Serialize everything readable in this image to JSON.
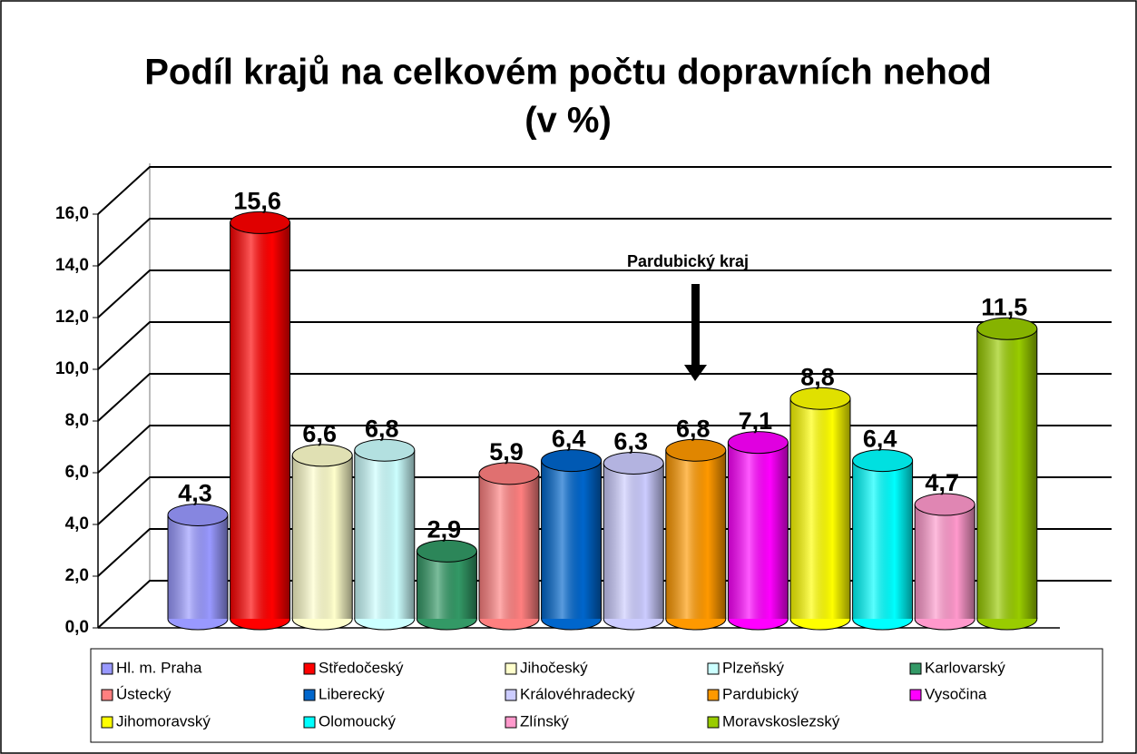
{
  "chart_data": {
    "type": "bar3d",
    "title": [
      "Podíl krajů na celkovém počtu dopravních nehod",
      "(v %)"
    ],
    "annotation": "Pardubický kraj",
    "categories": [
      "Hl. m. Praha",
      "Středočeský",
      "Jihočeský",
      "Plzeňský",
      "Karlovarský",
      "Ústecký",
      "Liberecký",
      "Královéhradecký",
      "Pardubický",
      "Vysočina",
      "Jihomoravský",
      "Olomoucký",
      "Zlínský",
      "Moravskoslezský"
    ],
    "values": [
      4.3,
      15.6,
      6.6,
      6.8,
      2.9,
      5.9,
      6.4,
      6.3,
      6.8,
      7.1,
      8.8,
      6.4,
      4.7,
      11.5
    ],
    "value_labels": [
      "4,3",
      "15,6",
      "6,6",
      "6,8",
      "2,9",
      "5,9",
      "6,4",
      "6,3",
      "6,8",
      "7,1",
      "8,8",
      "6,4",
      "4,7",
      "11,5"
    ],
    "colors": [
      "#9999ff",
      "#ff0000",
      "#ffffcc",
      "#ccffff",
      "#339966",
      "#ff8080",
      "#0066cc",
      "#ccccff",
      "#ff9900",
      "#ff00ff",
      "#ffff00",
      "#00ffff",
      "#ff99cc",
      "#99cc00"
    ],
    "ylim": [
      0,
      16
    ],
    "yticks": [
      {
        "value": 0,
        "label": "0,0"
      },
      {
        "value": 2,
        "label": "2,0"
      },
      {
        "value": 4,
        "label": "4,0"
      },
      {
        "value": 6,
        "label": "6,0"
      },
      {
        "value": 8,
        "label": "8,0"
      },
      {
        "value": 10,
        "label": "10,0"
      },
      {
        "value": 12,
        "label": "12,0"
      },
      {
        "value": 14,
        "label": "14,0"
      },
      {
        "value": 16,
        "label": "16,0"
      }
    ],
    "grid": true,
    "legend": "bottom"
  }
}
